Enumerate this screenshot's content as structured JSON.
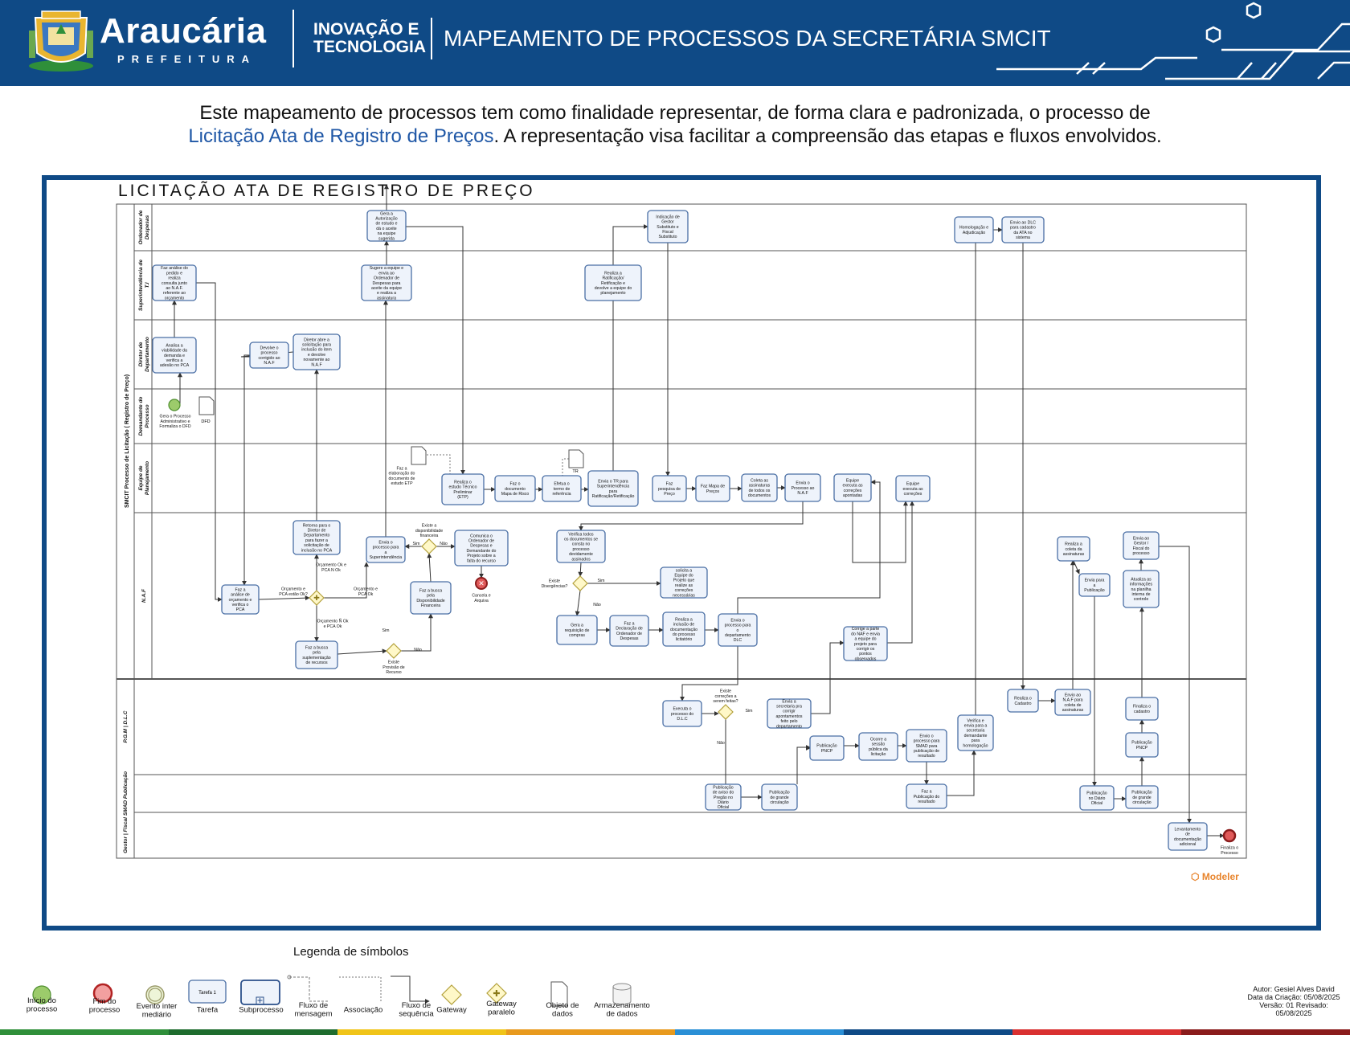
{
  "header": {
    "brand_name": "Araucária",
    "brand_sub": "PREFEITURA",
    "inov_line1": "INOVAÇÃO E",
    "inov_line2": "TECNOLOGIA",
    "title": "MAPEAMENTO DE PROCESSOS DA SECRETÁRIA SMCIT"
  },
  "intro": {
    "line1": "Este mapeamento de processos tem como finalidade representar, de forma clara e padronizada, o processo de",
    "highlight": "Licitação Ata de Registro de Preços",
    "line2_rest": ". A representação visa facilitar a compreensão das etapas e fluxos envolvidos."
  },
  "diagram": {
    "title": "LICITAÇÃO ATA DE REGISTRO DE PREÇO",
    "pool_label": "SMCIT Processo de Licitação ( Registro de Preço)",
    "lanes": [
      "Ordenador de Despesas",
      "Superintendência de T.I",
      "Diretor de Departamento",
      "Demandante do Processo",
      "Equipe de Planejamento",
      "N.A.F",
      "P.G.M | D.L.C",
      "SMAD Publicação",
      "Gestor | Fiscal"
    ],
    "tasks": [
      "Gera a Autorização de estudo e dá o aceite na equipe sugerida",
      "Indicação de Gestor Substituto e Fiscal Substituto",
      "Homologação e Adjudicação",
      "Envio ao DLC para cadastro da ATA no sistema",
      "Faz análise do pedido e realiza consulta junto ao N.A.F. referente ao orçamento",
      "Sugere a equipe e envia ao Ordenador de Despesas para aceite da equipe e realiza a assinatura",
      "Realiza a Ratificação/ Retificação e devolve a equipe do planejamento",
      "Analisa a viabilidade da demanda e verifica a adesão no PCA",
      "Devolve o processo corrigido ao N.A.F",
      "Diretor abre a solicitação para inclusão do item e devolve novamente ao N.A.F",
      "Realiza o estudo Técnico Preliminar (ETP)",
      "Faz o documento Mapa de Risco",
      "Efetua o termo de referência",
      "Envia o TR para Superintendência para Ratificação/Retificação",
      "Faz pesquisa de Preço",
      "Faz Mapa de Preços",
      "Coleta as assinaturas de todos os documentos",
      "Envia o Processo ao N.A.F",
      "Equipe executa as correções apontadas",
      "Equipe executa as correções",
      "Faz a análise de orçamento e verifica o PCA",
      "Retorna para o Diretor de Departamento para fazer a solicitação de inclusão no PCA",
      "Envia o processo para a Superintendência",
      "Comunica o Ordenador de Despesas e Demandante do Projeto sobre a falta do recurso",
      "Faz a busca pela Disponibilidade Financeira",
      "Faz a busca pela suplementação de recursos",
      "Verifica todos os documentos se consta no processo devidamente assinados",
      "solicita a Equipe do Projeto que realize as correções necessárias",
      "Gera a requisição de compras",
      "Faz a Declaração de Ordenador de Despesas",
      "Realiza a inclusão de documentação do processo licitatório",
      "Envia o processo para o departamento DLC",
      "Corrige a parte do NAF e envia a equipe do projeto para corrigir os pontos observados",
      "Realiza a coleta da assinaturas",
      "Envia para a Publicação",
      "Envia ao Gestor / Fiscal do processo",
      "Atualiza as informações na planilha interna de controle",
      "Executa o processo do D.L.C",
      "Envia a secretaria pra corrigir apontamentos feito pelo departamento",
      "Publicação PNCP",
      "Ocorre a sessão pública da licitação",
      "Envio o processo para SMAD para publicação de resultado",
      "Verifica e envia para a secretaria demandante para homologação",
      "Realiza o Cadastro",
      "Envio ao N.A.F para coleta de assinaturas",
      "Finaliza o cadastro",
      "Publicação PNCP",
      "Publicação de aviso do Pregão no Diário Oficial",
      "Publicação de grande circulação",
      "Faz a Publicação do resultado",
      "Publicação no Diário Oficial",
      "Publicação de grande circulação",
      "Levantamento de documentação adicional"
    ],
    "events": {
      "start_label": "Gera o Processo Administrativo e Formaliza o DFD",
      "cancel_label": "Cancela e Arquiva",
      "end_label": "Finaliza o Processo"
    },
    "data_objects": [
      "DFD",
      "Faz a elaboração do documento de estudo ETP",
      "TR"
    ],
    "gateways": [
      "Orçamento e PCA estão Ok?",
      "Existe a disponibilidade financeira",
      "Existe Provisão de Recurso",
      "Existe Divergências?",
      "Existe correções a serem feitas?"
    ],
    "flow_labels": [
      "Orçamento Ok e PCA N Ok",
      "Orçamento e PCA Ok",
      "Orçamento Ñ Ok e PCA Ok",
      "Sim",
      "Não",
      "Sim",
      "Não",
      "Sim",
      "Não",
      "Sim",
      "Não"
    ],
    "modeler_brand": "Modeler"
  },
  "legend": {
    "title": "Legenda de símbolos",
    "items": [
      "Início do processo",
      "Fim do processo",
      "Evento inter mediário",
      "Tarefa",
      "Subprocesso",
      "Fluxo de mensagem",
      "Associação",
      "Fluxo de sequência",
      "Gateway",
      "Gateway paralelo",
      "Objeto de dados",
      "Armazenamento de dados"
    ],
    "task_sample": "Tarefa 1"
  },
  "author": {
    "line1": "Autor: Gesiel Alves David",
    "line2": "Data da Criação: 05/08/2025",
    "line3": "Versão: 01 Revisado:",
    "line4": "05/08/2025"
  },
  "colors": {
    "brand_blue": "#0f4a86",
    "task_fill": "#eef3fb",
    "task_stroke": "#4a6fa5",
    "start_green": "#9ccb6b",
    "end_red": "#e05a5a",
    "gateway_fill": "#fff8c8"
  }
}
